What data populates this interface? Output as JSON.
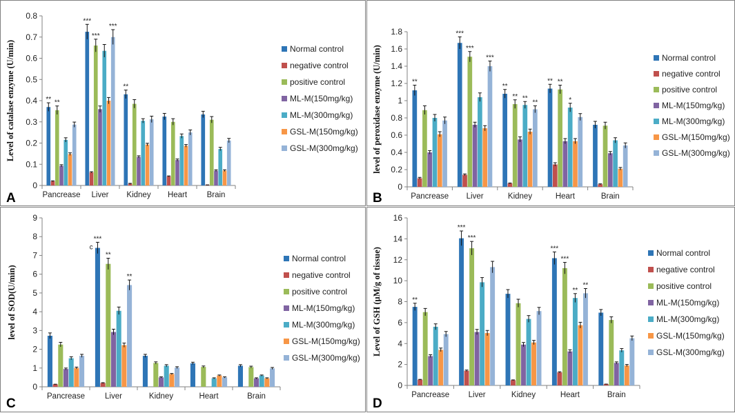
{
  "series_names": [
    "Normal control",
    "negative control",
    "positive control",
    "ML-M(150mg/kg)",
    "ML-M(300mg/kg)",
    "GSL-M(150mg/kg)",
    "GSL-M(300mg/kg)"
  ],
  "series_colors": [
    "#2E75B6",
    "#C0504D",
    "#9BBB59",
    "#8064A2",
    "#4BACC6",
    "#F79646",
    "#95B3D7"
  ],
  "chart_data": [
    {
      "panel": "A",
      "type": "bar",
      "ylabel": "Level of catalase enzyme (U/min)",
      "ylim": [
        0,
        0.8
      ],
      "yticks": [
        "0",
        "0.1",
        "0.2",
        "0.3",
        "0.4",
        "0.5",
        "0.6",
        "0.7",
        "0.8"
      ],
      "categories": [
        "Pancrease",
        "Liver",
        "Kidney",
        "Heart",
        "Brain"
      ],
      "series": [
        {
          "name": "Normal control",
          "values": [
            0.37,
            0.725,
            0.43,
            0.325,
            0.335
          ],
          "errors": [
            0.02,
            0.035,
            0.02,
            0.015,
            0.015
          ]
        },
        {
          "name": "negative control",
          "values": [
            0.02,
            0.062,
            0.008,
            0.043,
            0.002
          ],
          "errors": [
            0.002,
            0.003,
            0.002,
            0.002,
            0.001
          ]
        },
        {
          "name": "positive control",
          "values": [
            0.355,
            0.66,
            0.385,
            0.3,
            0.31
          ],
          "errors": [
            0.02,
            0.03,
            0.02,
            0.015,
            0.015
          ]
        },
        {
          "name": "ML-M(150mg/kg)",
          "values": [
            0.093,
            0.36,
            0.135,
            0.12,
            0.07
          ],
          "errors": [
            0.005,
            0.015,
            0.005,
            0.005,
            0.004
          ]
        },
        {
          "name": "ML-M(300mg/kg)",
          "values": [
            0.215,
            0.635,
            0.305,
            0.233,
            0.172
          ],
          "errors": [
            0.01,
            0.03,
            0.01,
            0.01,
            0.008
          ]
        },
        {
          "name": "GSL-M(150mg/kg)",
          "values": [
            0.148,
            0.4,
            0.193,
            0.187,
            0.07
          ],
          "errors": [
            0.006,
            0.015,
            0.006,
            0.006,
            0.004
          ]
        },
        {
          "name": "GSL-M(300mg/kg)",
          "values": [
            0.287,
            0.7,
            0.312,
            0.25,
            0.212
          ],
          "errors": [
            0.012,
            0.035,
            0.015,
            0.012,
            0.01
          ]
        }
      ],
      "annotations": [
        {
          "category": 0,
          "series": 0,
          "text": "**"
        },
        {
          "category": 0,
          "series": 2,
          "text": "**"
        },
        {
          "category": 1,
          "series": 0,
          "text": "***"
        },
        {
          "category": 1,
          "series": 2,
          "text": "***"
        },
        {
          "category": 1,
          "series": 6,
          "text": "***"
        },
        {
          "category": 2,
          "series": 0,
          "text": "**"
        }
      ]
    },
    {
      "panel": "B",
      "type": "bar",
      "ylabel": "level of peroxidase enzyme (U/min)",
      "ylim": [
        0,
        1.8
      ],
      "yticks": [
        "0",
        "0.2",
        "0.4",
        "0.6",
        "0.8",
        "1",
        "1.2",
        "1.4",
        "1.6",
        "1.8"
      ],
      "categories": [
        "Pancrease",
        "Liver",
        "Kidney",
        "Heart",
        "Brain"
      ],
      "series": [
        {
          "name": "Normal control",
          "values": [
            1.12,
            1.67,
            1.08,
            1.14,
            0.72
          ],
          "errors": [
            0.06,
            0.07,
            0.05,
            0.05,
            0.04
          ]
        },
        {
          "name": "negative control",
          "values": [
            0.1,
            0.14,
            0.04,
            0.26,
            0.03
          ],
          "errors": [
            0.01,
            0.01,
            0.005,
            0.02,
            0.005
          ]
        },
        {
          "name": "positive control",
          "values": [
            0.89,
            1.51,
            0.96,
            1.13,
            0.71
          ],
          "errors": [
            0.05,
            0.06,
            0.05,
            0.05,
            0.04
          ]
        },
        {
          "name": "ML-M(150mg/kg)",
          "values": [
            0.4,
            0.72,
            0.55,
            0.53,
            0.39
          ],
          "errors": [
            0.02,
            0.03,
            0.03,
            0.03,
            0.02
          ]
        },
        {
          "name": "ML-M(300mg/kg)",
          "values": [
            0.8,
            1.04,
            0.95,
            0.92,
            0.54
          ],
          "errors": [
            0.04,
            0.05,
            0.04,
            0.05,
            0.03
          ]
        },
        {
          "name": "GSL-M(150mg/kg)",
          "values": [
            0.61,
            0.68,
            0.64,
            0.53,
            0.21
          ],
          "errors": [
            0.03,
            0.03,
            0.03,
            0.03,
            0.015
          ]
        },
        {
          "name": "GSL-M(300mg/kg)",
          "values": [
            0.77,
            1.4,
            0.9,
            0.81,
            0.48
          ],
          "errors": [
            0.04,
            0.06,
            0.04,
            0.04,
            0.03
          ]
        }
      ],
      "annotations": [
        {
          "category": 0,
          "series": 0,
          "text": "**"
        },
        {
          "category": 1,
          "series": 0,
          "text": "***"
        },
        {
          "category": 1,
          "series": 2,
          "text": "***"
        },
        {
          "category": 1,
          "series": 6,
          "text": "***"
        },
        {
          "category": 2,
          "series": 0,
          "text": "**"
        },
        {
          "category": 2,
          "series": 2,
          "text": "**"
        },
        {
          "category": 2,
          "series": 4,
          "text": "**"
        },
        {
          "category": 2,
          "series": 6,
          "text": "**"
        },
        {
          "category": 3,
          "series": 0,
          "text": "**"
        },
        {
          "category": 3,
          "series": 2,
          "text": "**"
        },
        {
          "category": 3,
          "series": 4,
          "text": "*"
        }
      ]
    },
    {
      "panel": "C",
      "type": "bar",
      "ylabel": "level of SOD(U/min)",
      "ylim": [
        0,
        9
      ],
      "yticks": [
        "0",
        "1",
        "2",
        "3",
        "4",
        "5",
        "6",
        "7",
        "8",
        "9"
      ],
      "categories": [
        "Pancrease",
        "Liver",
        "Kidney",
        "Heart",
        "Brain"
      ],
      "series": [
        {
          "name": "Normal control",
          "values": [
            2.72,
            7.4,
            1.65,
            1.25,
            1.12
          ],
          "errors": [
            0.15,
            0.3,
            0.08,
            0.06,
            0.06
          ]
        },
        {
          "name": "negative control",
          "values": [
            0.13,
            0.2,
            0.0,
            0.0,
            0.0
          ],
          "errors": [
            0.01,
            0.02,
            0.0,
            0.0,
            0.0
          ]
        },
        {
          "name": "positive control",
          "values": [
            2.25,
            6.55,
            1.27,
            1.06,
            1.05
          ],
          "errors": [
            0.12,
            0.3,
            0.06,
            0.05,
            0.05
          ]
        },
        {
          "name": "ML-M(150mg/kg)",
          "values": [
            0.95,
            2.92,
            0.5,
            0.0,
            0.45
          ],
          "errors": [
            0.05,
            0.15,
            0.03,
            0.0,
            0.03
          ]
        },
        {
          "name": "ML-M(300mg/kg)",
          "values": [
            1.52,
            4.05,
            1.12,
            0.45,
            0.6
          ],
          "errors": [
            0.08,
            0.2,
            0.06,
            0.03,
            0.03
          ]
        },
        {
          "name": "GSL-M(150mg/kg)",
          "values": [
            1.0,
            2.22,
            0.68,
            0.6,
            0.45
          ],
          "errors": [
            0.05,
            0.11,
            0.03,
            0.03,
            0.03
          ]
        },
        {
          "name": "GSL-M(300mg/kg)",
          "values": [
            1.65,
            5.42,
            1.02,
            0.5,
            0.98
          ],
          "errors": [
            0.08,
            0.27,
            0.05,
            0.03,
            0.05
          ]
        }
      ],
      "annotations": [
        {
          "category": 1,
          "series": 0,
          "text": "***"
        },
        {
          "category": 1,
          "series": 2,
          "text": "**"
        },
        {
          "category": 1,
          "series": 6,
          "text": "**"
        }
      ],
      "extra_marks": [
        {
          "category": 1,
          "series": 0,
          "text": "c"
        }
      ]
    },
    {
      "panel": "D",
      "type": "bar",
      "ylabel": "Level of GSH (µM/g of tissue)",
      "ylim": [
        0,
        16
      ],
      "yticks": [
        "0",
        "2",
        "4",
        "6",
        "8",
        "10",
        "12",
        "14",
        "16"
      ],
      "categories": [
        "Pancrease",
        "Liver",
        "Kidney",
        "Heart",
        "Brain"
      ],
      "series": [
        {
          "name": "Normal control",
          "values": [
            7.5,
            14.05,
            8.75,
            12.15,
            6.95
          ],
          "errors": [
            0.35,
            0.7,
            0.4,
            0.6,
            0.3
          ]
        },
        {
          "name": "negative control",
          "values": [
            0.55,
            1.4,
            0.5,
            1.25,
            0.12
          ],
          "errors": [
            0.03,
            0.07,
            0.03,
            0.06,
            0.01
          ]
        },
        {
          "name": "positive control",
          "values": [
            7.0,
            13.1,
            7.85,
            11.2,
            6.25
          ],
          "errors": [
            0.35,
            0.65,
            0.38,
            0.55,
            0.3
          ]
        },
        {
          "name": "ML-M(150mg/kg)",
          "values": [
            2.8,
            5.1,
            3.9,
            3.25,
            2.15
          ],
          "errors": [
            0.13,
            0.25,
            0.2,
            0.16,
            0.1
          ]
        },
        {
          "name": "ML-M(300mg/kg)",
          "values": [
            5.6,
            9.85,
            6.35,
            8.35,
            3.35
          ],
          "errors": [
            0.28,
            0.45,
            0.32,
            0.42,
            0.17
          ]
        },
        {
          "name": "GSL-M(150mg/kg)",
          "values": [
            3.4,
            5.0,
            4.1,
            5.75,
            1.9
          ],
          "errors": [
            0.17,
            0.25,
            0.2,
            0.28,
            0.1
          ]
        },
        {
          "name": "GSL-M(300mg/kg)",
          "values": [
            4.9,
            11.3,
            7.1,
            8.8,
            4.5
          ],
          "errors": [
            0.25,
            0.55,
            0.35,
            0.45,
            0.22
          ]
        }
      ],
      "annotations": [
        {
          "category": 0,
          "series": 0,
          "text": "**"
        },
        {
          "category": 1,
          "series": 0,
          "text": "***"
        },
        {
          "category": 1,
          "series": 2,
          "text": "***"
        },
        {
          "category": 3,
          "series": 0,
          "text": "***"
        },
        {
          "category": 3,
          "series": 2,
          "text": "***"
        },
        {
          "category": 3,
          "series": 4,
          "text": "**"
        },
        {
          "category": 3,
          "series": 6,
          "text": "**"
        }
      ]
    }
  ]
}
